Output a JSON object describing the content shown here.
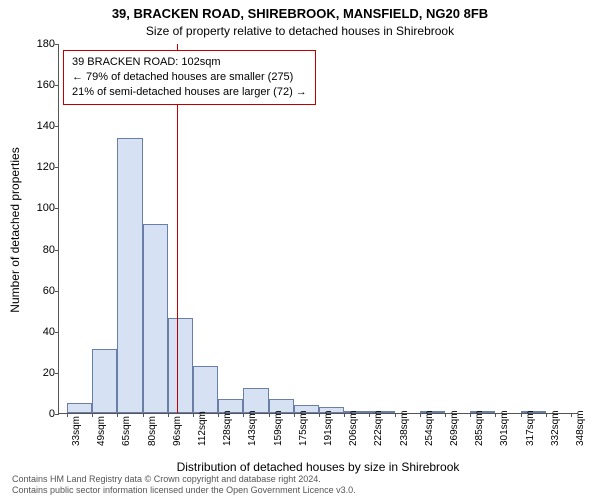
{
  "title_main": "39, BRACKEN ROAD, SHIREBROOK, MANSFIELD, NG20 8FB",
  "title_sub": "Size of property relative to detached houses in Shirebrook",
  "ylabel": "Number of detached properties",
  "xlabel": "Distribution of detached houses by size in Shirebrook",
  "footer_line1": "Contains HM Land Registry data © Crown copyright and database right 2024.",
  "footer_line2": "Contains public sector information licensed under the Open Government Licence v3.0.",
  "annotation": {
    "line1": "39 BRACKEN ROAD: 102sqm",
    "line2": "← 79% of detached houses are smaller (275)",
    "line3": "21% of semi-detached houses are larger (72) →"
  },
  "chart": {
    "type": "histogram",
    "ylim": [
      0,
      180
    ],
    "ytick_step": 20,
    "bar_fill": "#d7e1f4",
    "bar_stroke": "#6a7fa8",
    "ref_line_color": "#c00000",
    "ref_line_x_value": 102,
    "plot_background": "#ffffff",
    "axis_color": "#555555",
    "x_start": 33,
    "x_step": 15.75,
    "xticks": [
      "33sqm",
      "49sqm",
      "65sqm",
      "80sqm",
      "96sqm",
      "112sqm",
      "128sqm",
      "143sqm",
      "159sqm",
      "175sqm",
      "191sqm",
      "206sqm",
      "222sqm",
      "238sqm",
      "254sqm",
      "269sqm",
      "285sqm",
      "301sqm",
      "317sqm",
      "332sqm",
      "348sqm"
    ],
    "values": [
      5,
      31,
      134,
      92,
      46,
      23,
      7,
      12,
      7,
      4,
      3,
      1,
      1,
      0,
      1,
      0,
      1,
      0,
      1,
      0
    ]
  }
}
